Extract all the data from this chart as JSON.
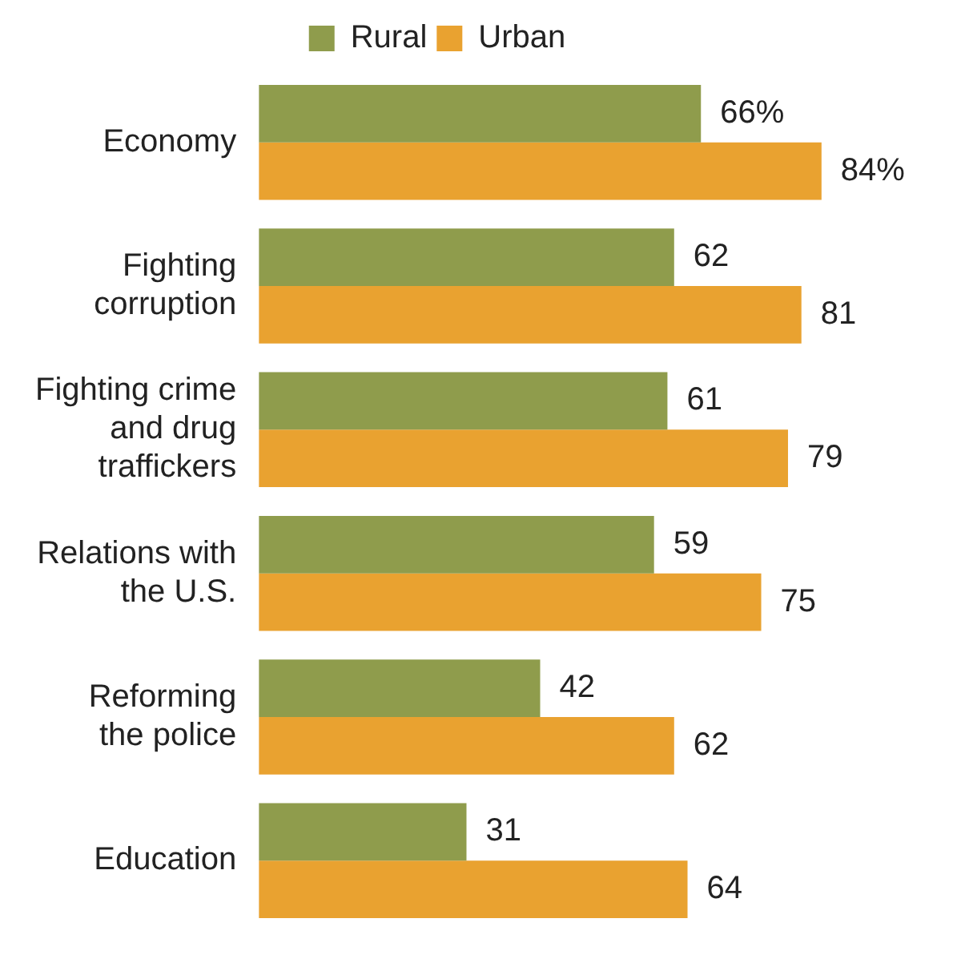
{
  "chart_data": {
    "type": "bar",
    "orientation": "horizontal",
    "categories": [
      "Economy",
      "Fighting\ncorruption",
      "Fighting crime\nand drug\ntraffickers",
      "Relations with\nthe U.S.",
      "Reforming\nthe police",
      "Education"
    ],
    "series": [
      {
        "name": "Rural",
        "color": "#8f9c4c",
        "values": [
          66,
          62,
          61,
          59,
          42,
          31
        ],
        "value_labels": [
          "66%",
          "62",
          "61",
          "59",
          "42",
          "31"
        ]
      },
      {
        "name": "Urban",
        "color": "#e9a230",
        "values": [
          84,
          81,
          79,
          75,
          62,
          64
        ],
        "value_labels": [
          "84%",
          "81",
          "79",
          "75",
          "62",
          "64"
        ]
      }
    ],
    "tick_labels": "y",
    "grid": false,
    "legend": "top"
  }
}
